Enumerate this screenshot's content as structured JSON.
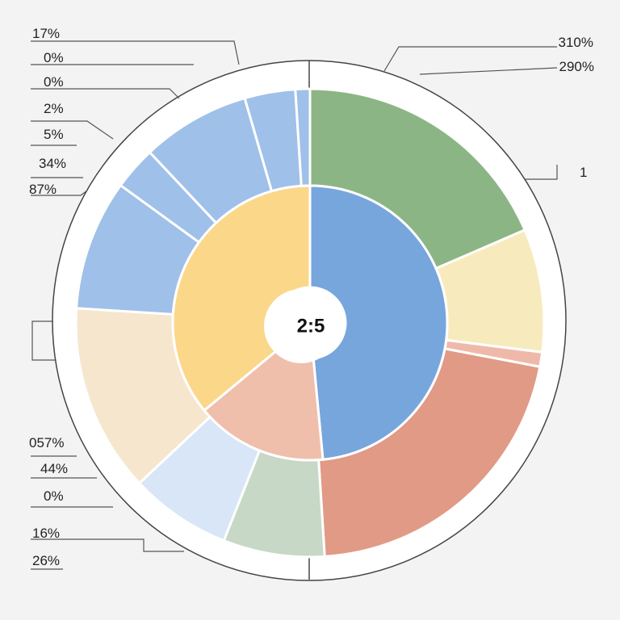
{
  "chart_data": {
    "type": "pie",
    "subtype": "double-ring-donut",
    "title": "",
    "center_label": "2:5",
    "outer_ring": [
      {
        "value": 18.5,
        "color": "#8cb585"
      },
      {
        "value": 8.5,
        "color": "#f7ebbe"
      },
      {
        "value": 1.0,
        "color": "#efb9aa"
      },
      {
        "value": 21.0,
        "color": "#e19a86"
      },
      {
        "value": 7.0,
        "color": "#c7d8c6"
      },
      {
        "value": 7.0,
        "color": "#d8e6f7"
      },
      {
        "value": 13.0,
        "color": "#f6e6ce"
      },
      {
        "value": 9.0,
        "color": "#9fc0e9"
      },
      {
        "value": 3.0,
        "color": "#9fc0e9"
      },
      {
        "value": 7.5,
        "color": "#9fc0e9"
      },
      {
        "value": 3.5,
        "color": "#9fc0e9"
      },
      {
        "value": 1.0,
        "color": "#9fc0e9"
      }
    ],
    "inner_ring": [
      {
        "value": 48.5,
        "color": "#77a6dc"
      },
      {
        "value": 15.5,
        "color": "#efbfab"
      },
      {
        "value": 36.0,
        "color": "#fbd78a"
      }
    ],
    "left_labels": [
      "17%",
      "0%",
      "0%",
      "2%",
      "5%",
      "34%",
      "87%",
      "057%",
      "44%",
      "0%",
      "16%",
      "26%"
    ],
    "right_labels": [
      "310%",
      "290%",
      "1"
    ],
    "colors": {
      "ring_border": "#ffffff",
      "background": "#f3f3f4",
      "outer_frame": "#ffffff"
    }
  }
}
